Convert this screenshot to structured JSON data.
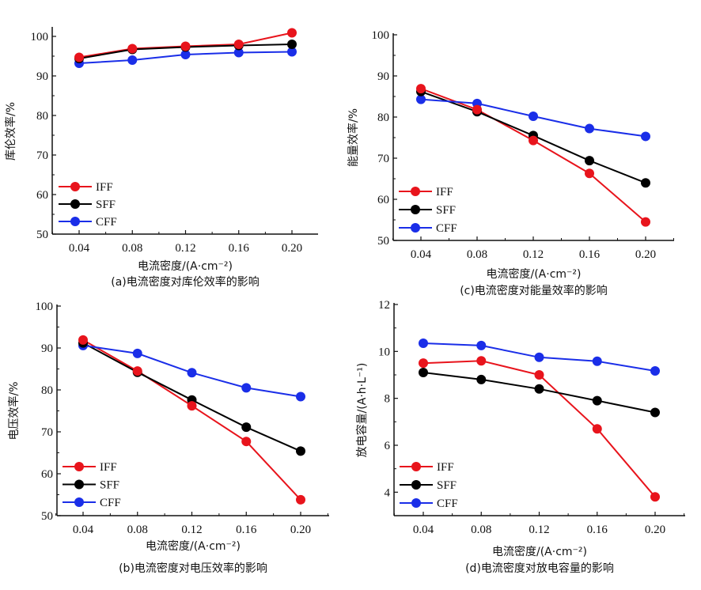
{
  "chart_data": [
    {
      "id": "a",
      "type": "line",
      "title": "",
      "caption": "(a)电流密度对库伦效率的影响",
      "xlabel": "电流密度/(A·cm⁻²)",
      "ylabel": "库伦效率/%",
      "x": [
        0.04,
        0.08,
        0.12,
        0.16,
        0.2
      ],
      "xticks": [
        "0.04",
        "0.08",
        "0.12",
        "0.16",
        "0.20"
      ],
      "xlim": [
        0.02,
        0.22
      ],
      "ylim": [
        50,
        102
      ],
      "yticks": [
        50,
        60,
        70,
        80,
        90,
        100
      ],
      "legend_position": "bottom-left",
      "grid": false,
      "series": [
        {
          "name": "IFF",
          "color": "#e8141c",
          "values": [
            94.7,
            96.9,
            97.5,
            98.0,
            100.9
          ]
        },
        {
          "name": "SFF",
          "color": "#000000",
          "values": [
            94.4,
            96.7,
            97.3,
            97.7,
            98.0
          ]
        },
        {
          "name": "CFF",
          "color": "#1a2ee8",
          "values": [
            93.2,
            94.0,
            95.4,
            95.9,
            96.1
          ]
        }
      ]
    },
    {
      "id": "c",
      "type": "line",
      "title": "",
      "caption": "(c)电流密度对能量效率的影响",
      "xlabel": "电流密度/(A·cm⁻²)",
      "ylabel": "能量效率/%",
      "x": [
        0.04,
        0.08,
        0.12,
        0.16,
        0.2
      ],
      "xticks": [
        "0.04",
        "0.08",
        "0.12",
        "0.16",
        "0.20"
      ],
      "xlim": [
        0.02,
        0.22
      ],
      "ylim": [
        50,
        100
      ],
      "yticks": [
        50,
        60,
        70,
        80,
        90,
        100
      ],
      "legend_position": "bottom-left",
      "grid": false,
      "series": [
        {
          "name": "IFF",
          "color": "#e8141c",
          "values": [
            86.9,
            81.8,
            74.3,
            66.3,
            54.5
          ]
        },
        {
          "name": "SFF",
          "color": "#000000",
          "values": [
            86.2,
            81.3,
            75.5,
            69.4,
            64.0
          ]
        },
        {
          "name": "CFF",
          "color": "#1a2ee8",
          "values": [
            84.3,
            83.3,
            80.2,
            77.2,
            75.3
          ]
        }
      ]
    },
    {
      "id": "b",
      "type": "line",
      "title": "",
      "caption": "(b)电流密度对电压效率的影响",
      "xlabel": "电流密度/(A·cm⁻²)",
      "ylabel": "电压效率/%",
      "x": [
        0.04,
        0.08,
        0.12,
        0.16,
        0.2
      ],
      "xticks": [
        "0.04",
        "0.08",
        "0.12",
        "0.16",
        "0.20"
      ],
      "xlim": [
        0.02,
        0.22
      ],
      "ylim": [
        50,
        100
      ],
      "yticks": [
        50,
        60,
        70,
        80,
        90,
        100
      ],
      "legend_position": "bottom-left",
      "grid": false,
      "series": [
        {
          "name": "IFF",
          "color": "#e8141c",
          "values": [
            91.9,
            84.5,
            76.2,
            67.7,
            53.8
          ]
        },
        {
          "name": "SFF",
          "color": "#000000",
          "values": [
            91.2,
            84.2,
            77.6,
            71.1,
            65.4
          ]
        },
        {
          "name": "CFF",
          "color": "#1a2ee8",
          "values": [
            90.6,
            88.7,
            84.1,
            80.5,
            78.4
          ]
        }
      ]
    },
    {
      "id": "d",
      "type": "line",
      "title": "",
      "caption": "(d)电流密度对放电容量的影响",
      "xlabel": "电流密度/(A·cm⁻²)",
      "ylabel": "放电容量/(A·h·L⁻¹)",
      "x": [
        0.04,
        0.08,
        0.12,
        0.16,
        0.2
      ],
      "xticks": [
        "0.04",
        "0.08",
        "0.12",
        "0.16",
        "0.20"
      ],
      "xlim": [
        0.02,
        0.22
      ],
      "ylim": [
        3,
        12
      ],
      "yticks": [
        4,
        6,
        8,
        10,
        12
      ],
      "legend_position": "bottom-left",
      "grid": false,
      "series": [
        {
          "name": "IFF",
          "color": "#e8141c",
          "values": [
            9.5,
            9.6,
            9.0,
            6.7,
            3.8
          ]
        },
        {
          "name": "SFF",
          "color": "#000000",
          "values": [
            9.1,
            8.8,
            8.4,
            7.9,
            7.4
          ]
        },
        {
          "name": "CFF",
          "color": "#1a2ee8",
          "values": [
            10.35,
            10.25,
            9.75,
            9.58,
            9.17
          ]
        }
      ]
    }
  ]
}
